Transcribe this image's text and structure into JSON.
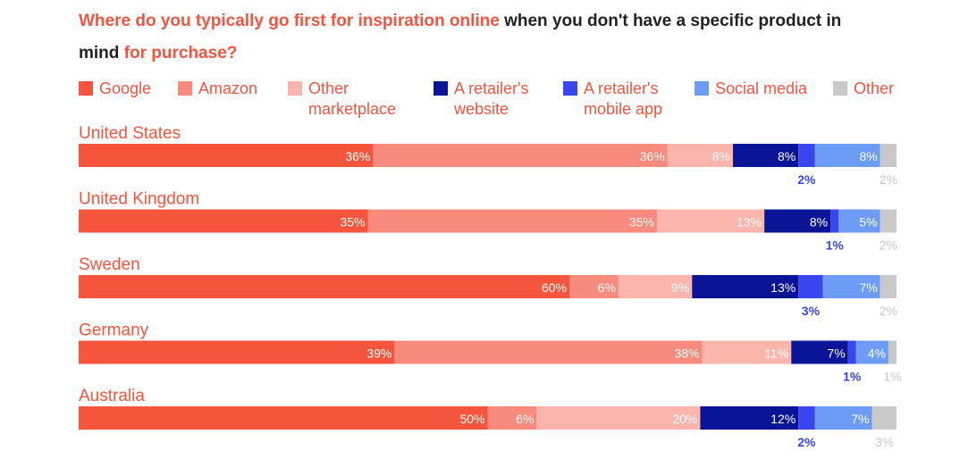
{
  "title": {
    "part1": "Where do you typically go first for inspiration online",
    "part2": " when you don't have a specific product in mind ",
    "part3": "for purchase?"
  },
  "colors": {
    "accent": "#f2553f",
    "google": "#f6553d",
    "amazon": "#f98b7e",
    "other_marketplace": "#fcb5ad",
    "retailer_website": "#0a1496",
    "retailer_app": "#3946f0",
    "social_media": "#6c9cf5",
    "other": "#c9c9c9"
  },
  "chart_data": {
    "type": "bar",
    "orientation": "horizontal",
    "stacked": true,
    "title": "Where do you typically go first for inspiration online when you don't have a specific product in mind for purchase?",
    "categories": [
      "United States",
      "United Kingdom",
      "Sweden",
      "Germany",
      "Australia"
    ],
    "legend_position": "top",
    "grid": false,
    "xlim": [
      0,
      100
    ],
    "series": [
      {
        "name": "Google",
        "values": [
          36,
          35,
          60,
          39,
          50
        ]
      },
      {
        "name": "Amazon",
        "values": [
          36,
          35,
          6,
          38,
          6
        ]
      },
      {
        "name": "Other marketplace",
        "values": [
          8,
          13,
          9,
          11,
          20
        ]
      },
      {
        "name": "A retailer's website",
        "values": [
          8,
          8,
          13,
          7,
          12
        ]
      },
      {
        "name": "A retailer's mobile app",
        "values": [
          2,
          1,
          3,
          1,
          2
        ]
      },
      {
        "name": "Social media",
        "values": [
          8,
          5,
          7,
          4,
          7
        ]
      },
      {
        "name": "Other",
        "values": [
          2,
          2,
          2,
          1,
          3
        ]
      }
    ],
    "value_suffix": "%"
  }
}
